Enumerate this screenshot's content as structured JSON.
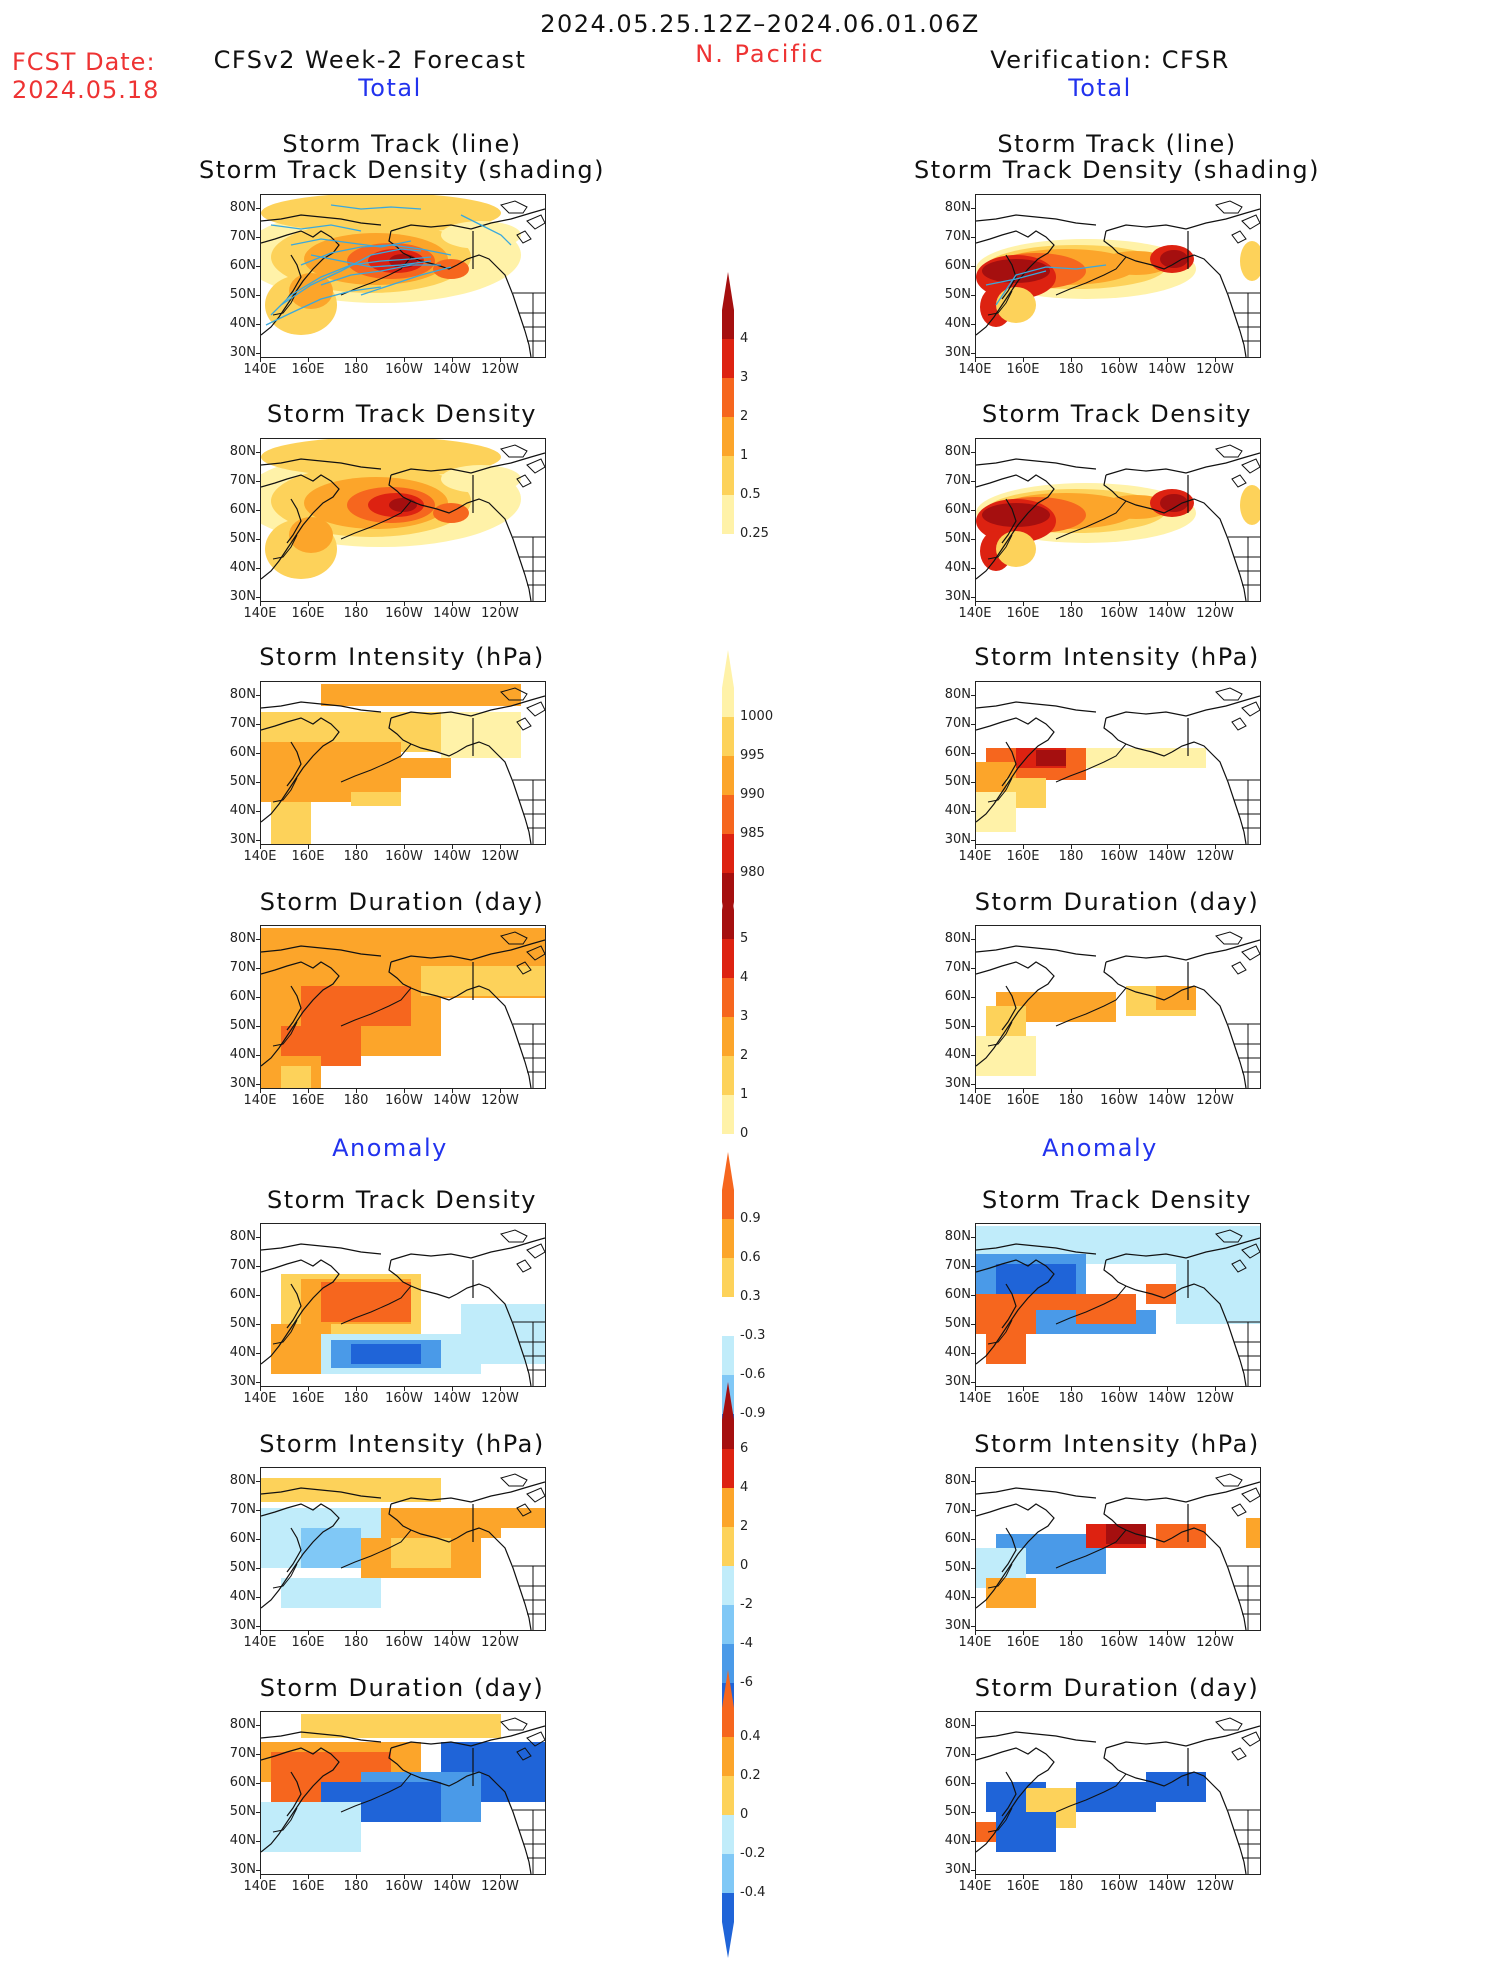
{
  "header": {
    "date_range": "2024.05.25.12Z–2024.06.01.06Z",
    "fcst_label": "FCST Date:",
    "fcst_date": "2024.05.18",
    "left_title": "CFSv2 Week-2 Forecast",
    "region": "N. Pacific",
    "right_title": "Verification: CFSR",
    "total_left": "Total",
    "total_right": "Total",
    "anomaly_left": "Anomaly",
    "anomaly_right": "Anomaly"
  },
  "panels": {
    "track_line_1": "Storm Track (line)",
    "track_line_2": "Storm Track Density (shading)",
    "density": "Storm Track Density",
    "intensity": "Storm Intensity (hPa)",
    "duration": "Storm Duration (day)"
  },
  "axes": {
    "lat": [
      "80N",
      "70N",
      "60N",
      "50N",
      "40N",
      "30N"
    ],
    "lon": [
      "140E",
      "160E",
      "180",
      "160W",
      "140W",
      "120W"
    ]
  },
  "colorbars": {
    "density": [
      "4",
      "3",
      "2",
      "1",
      "0.5",
      "0.25"
    ],
    "intensity": [
      "1000",
      "995",
      "990",
      "985",
      "980"
    ],
    "duration": [
      "5",
      "4",
      "3",
      "2",
      "1",
      "0"
    ],
    "density_anom": [
      "0.9",
      "0.6",
      "0.3",
      "-0.3",
      "-0.6",
      "-0.9"
    ],
    "intensity_anom": [
      "6",
      "4",
      "2",
      "0",
      "-2",
      "-4",
      "-6"
    ],
    "duration_anom": [
      "0.4",
      "0.2",
      "0",
      "-0.2",
      "-0.4"
    ]
  },
  "colors": {
    "yellow_light": "#fff2a8",
    "yellow": "#fdd25a",
    "orange": "#fca52a",
    "orange_red": "#f6661e",
    "red": "#dd2211",
    "dark_red": "#a50f0f",
    "blue_light": "#c0ecfa",
    "blue_mid": "#80c8f6",
    "blue": "#4a9ae8",
    "blue_dark": "#1f64d8",
    "track_line": "#3aa8dd"
  }
}
